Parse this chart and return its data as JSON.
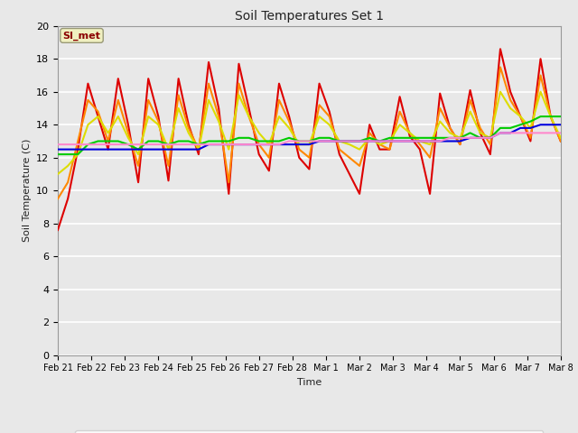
{
  "title": "Soil Temperatures Set 1",
  "xlabel": "Time",
  "ylabel": "Soil Temperature (C)",
  "ylim": [
    0,
    20
  ],
  "yticks": [
    0,
    2,
    4,
    6,
    8,
    10,
    12,
    14,
    16,
    18,
    20
  ],
  "annotation_text": "SI_met",
  "annotation_color": "#8b0000",
  "annotation_bg": "#f0f0c0",
  "series_colors": {
    "TC1_2Cm": "#dd0000",
    "TC1_4Cm": "#ff8800",
    "TC1_8Cm": "#dddd00",
    "TC1_16Cm": "#00cc00",
    "TC1_32Cm": "#0000dd",
    "TC1_50Cm": "#ff88cc"
  },
  "x_labels": [
    "Feb 21",
    "Feb 22",
    "Feb 23",
    "Feb 24",
    "Feb 25",
    "Feb 26",
    "Feb 27",
    "Feb 28",
    "Mar 1",
    "Mar 2",
    "Mar 3",
    "Mar 4",
    "Mar 5",
    "Mar 6",
    "Mar 7",
    "Mar 8"
  ],
  "TC1_2Cm": [
    7.6,
    9.5,
    12.5,
    16.5,
    14.5,
    12.5,
    16.8,
    14.0,
    10.5,
    16.8,
    14.5,
    10.6,
    16.8,
    14.0,
    12.2,
    17.8,
    15.0,
    9.8,
    17.7,
    15.0,
    12.2,
    11.2,
    16.5,
    14.5,
    12.0,
    11.3,
    16.5,
    14.8,
    12.2,
    11.0,
    9.8,
    14.0,
    12.5,
    12.5,
    15.7,
    13.3,
    12.5,
    9.8,
    15.9,
    13.8,
    12.8,
    16.1,
    13.5,
    12.2,
    18.6,
    16.0,
    14.5,
    13.0,
    18.0,
    14.5,
    13.0
  ],
  "TC1_4Cm": [
    9.5,
    10.5,
    13.0,
    15.5,
    14.8,
    13.0,
    15.5,
    13.5,
    11.5,
    15.5,
    14.2,
    11.5,
    15.8,
    13.8,
    12.5,
    16.5,
    14.5,
    10.5,
    16.5,
    14.5,
    12.8,
    12.0,
    15.5,
    14.2,
    12.5,
    12.0,
    15.2,
    14.5,
    12.5,
    12.0,
    11.5,
    13.5,
    12.8,
    12.5,
    14.8,
    13.5,
    12.8,
    12.0,
    15.0,
    13.8,
    12.8,
    15.5,
    13.8,
    12.8,
    17.5,
    15.5,
    14.5,
    13.2,
    17.0,
    14.5,
    13.0
  ],
  "TC1_8Cm": [
    11.0,
    11.5,
    12.2,
    14.0,
    14.5,
    13.5,
    14.5,
    13.2,
    12.2,
    14.5,
    14.0,
    12.5,
    15.0,
    13.5,
    12.5,
    15.5,
    14.2,
    12.5,
    15.8,
    14.5,
    13.5,
    12.8,
    14.5,
    13.8,
    12.8,
    12.8,
    14.5,
    14.0,
    13.0,
    12.8,
    12.5,
    13.2,
    12.8,
    13.0,
    14.0,
    13.5,
    13.0,
    12.8,
    14.2,
    13.5,
    13.2,
    14.8,
    13.5,
    13.2,
    16.0,
    15.0,
    14.5,
    13.8,
    16.0,
    14.5,
    13.2
  ],
  "TC1_16Cm": [
    12.2,
    12.2,
    12.2,
    12.8,
    13.0,
    13.0,
    13.0,
    12.8,
    12.5,
    13.0,
    13.0,
    12.8,
    13.0,
    13.0,
    12.8,
    13.0,
    13.0,
    13.0,
    13.2,
    13.2,
    13.0,
    13.0,
    13.0,
    13.2,
    13.0,
    13.0,
    13.2,
    13.2,
    13.0,
    13.0,
    13.0,
    13.2,
    13.0,
    13.2,
    13.2,
    13.2,
    13.2,
    13.2,
    13.2,
    13.2,
    13.2,
    13.5,
    13.2,
    13.2,
    13.8,
    13.8,
    14.0,
    14.2,
    14.5,
    14.5,
    14.5
  ],
  "TC1_32Cm": [
    12.5,
    12.5,
    12.5,
    12.5,
    12.5,
    12.5,
    12.5,
    12.5,
    12.5,
    12.5,
    12.5,
    12.5,
    12.5,
    12.5,
    12.5,
    12.8,
    12.8,
    12.8,
    12.8,
    12.8,
    12.8,
    12.8,
    12.8,
    12.8,
    12.8,
    12.8,
    13.0,
    13.0,
    13.0,
    13.0,
    13.0,
    13.0,
    13.0,
    13.0,
    13.0,
    13.0,
    13.0,
    13.0,
    13.0,
    13.0,
    13.0,
    13.2,
    13.2,
    13.2,
    13.5,
    13.5,
    13.8,
    13.8,
    14.0,
    14.0,
    14.0
  ],
  "TC1_50Cm": [
    12.8,
    12.8,
    12.8,
    12.8,
    12.8,
    12.8,
    12.8,
    12.8,
    12.8,
    12.8,
    12.8,
    12.8,
    12.8,
    12.8,
    12.8,
    12.8,
    12.8,
    12.8,
    12.8,
    12.8,
    12.8,
    12.8,
    12.8,
    13.0,
    13.0,
    13.0,
    13.0,
    13.0,
    13.0,
    13.0,
    13.0,
    13.0,
    13.0,
    13.0,
    13.0,
    13.0,
    13.0,
    13.0,
    13.0,
    13.2,
    13.2,
    13.2,
    13.2,
    13.2,
    13.5,
    13.5,
    13.5,
    13.5,
    13.5,
    13.5,
    13.5
  ]
}
